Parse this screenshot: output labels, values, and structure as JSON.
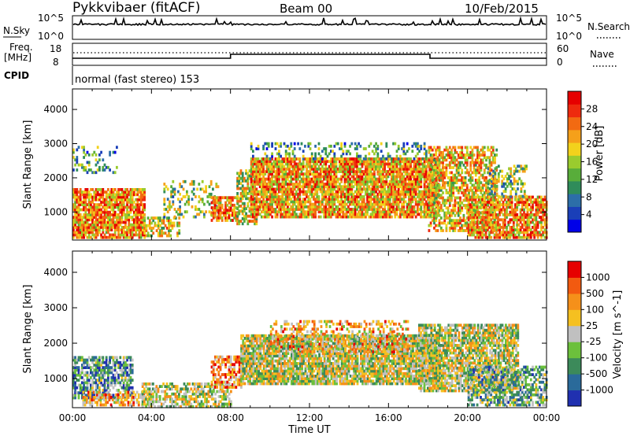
{
  "header": {
    "site": "Pykkvibaer (fitACF)",
    "beam": "Beam 00",
    "date": "10/Feb/2015"
  },
  "status_panels": {
    "nsky": {
      "label": "N.Sky",
      "ticks": [
        "10^5",
        "10^0"
      ],
      "right_label": "N.Search",
      "right_ticks": [
        "10^5",
        "10^0"
      ]
    },
    "freq": {
      "label_top": "Freq.",
      "label_bottom": "[MHz]",
      "ticks": [
        "18",
        "8"
      ],
      "right_label": "Nave",
      "right_ticks": [
        "60",
        "0"
      ]
    },
    "cpid": {
      "label": "CPID",
      "text": "normal (fast stereo) 153"
    }
  },
  "time_axis": {
    "label": "Time UT",
    "ticks": [
      "00:00",
      "04:00",
      "08:00",
      "12:00",
      "16:00",
      "20:00",
      "00:00"
    ]
  },
  "chart_data": [
    {
      "type": "heatmap",
      "name": "power-panel",
      "ylabel": "Slant Range [km]",
      "yticks": [
        1000,
        2000,
        3000,
        4000
      ],
      "ylim": [
        180,
        4600
      ],
      "xlim_hours": [
        0,
        24
      ],
      "colorbar": {
        "label": "Power [dB]",
        "ticks": [
          "28",
          "24",
          "20",
          "16",
          "12",
          "8",
          "4"
        ],
        "colors": [
          "#0000e8",
          "#1a3fb8",
          "#2c6ea8",
          "#2f8c5a",
          "#58ad3a",
          "#9acb2e",
          "#f2d21c",
          "#f5a01a",
          "#f26a12",
          "#ee2a0e",
          "#e60000"
        ]
      },
      "scatter_bands": [
        {
          "t0": 0.0,
          "t1": 3.6,
          "r0": 300,
          "r1": 1700,
          "level": 0.72,
          "density": 0.82
        },
        {
          "t0": 0.0,
          "t1": 2.2,
          "r0": 2200,
          "r1": 3000,
          "level": 0.35,
          "density": 0.22
        },
        {
          "t0": 3.6,
          "t1": 5.4,
          "r0": 350,
          "r1": 900,
          "level": 0.55,
          "density": 0.55
        },
        {
          "t0": 4.6,
          "t1": 7.4,
          "r0": 900,
          "r1": 2000,
          "level": 0.45,
          "density": 0.28
        },
        {
          "t0": 7.0,
          "t1": 8.4,
          "r0": 800,
          "r1": 1500,
          "level": 0.72,
          "density": 0.65
        },
        {
          "t0": 8.3,
          "t1": 9.3,
          "r0": 700,
          "r1": 2300,
          "level": 0.55,
          "density": 0.6
        },
        {
          "t0": 9.0,
          "t1": 18.5,
          "r0": 900,
          "r1": 2600,
          "level": 0.68,
          "density": 0.85
        },
        {
          "t0": 9.0,
          "t1": 18.0,
          "r0": 2600,
          "r1": 3100,
          "level": 0.35,
          "density": 0.25
        },
        {
          "t0": 18.0,
          "t1": 21.5,
          "r0": 500,
          "r1": 3000,
          "level": 0.62,
          "density": 0.6
        },
        {
          "t0": 20.0,
          "t1": 24.0,
          "r0": 300,
          "r1": 1500,
          "level": 0.7,
          "density": 0.75
        },
        {
          "t0": 21.0,
          "t1": 23.0,
          "r0": 1500,
          "r1": 2400,
          "level": 0.45,
          "density": 0.4
        }
      ]
    },
    {
      "type": "heatmap",
      "name": "velocity-panel",
      "ylabel": "Slant Range [km]",
      "yticks": [
        1000,
        2000,
        3000,
        4000
      ],
      "ylim": [
        180,
        4600
      ],
      "xlim_hours": [
        0,
        24
      ],
      "colorbar": {
        "label": "Velocity [m s^-1]",
        "ticks": [
          "1000",
          "500",
          "100",
          "25",
          "-25",
          "-100",
          "-500",
          "-1000"
        ],
        "colors": [
          "#2030b0",
          "#2a6a9a",
          "#3c8a5a",
          "#6cc03c",
          "#c0c0c0",
          "#f5c020",
          "#f5901a",
          "#f25a10",
          "#e60000"
        ]
      },
      "scatter_bands": [
        {
          "t0": 0.0,
          "t1": 3.0,
          "r0": 500,
          "r1": 1700,
          "level": 0.3,
          "density": 0.7
        },
        {
          "t0": 0.5,
          "t1": 4.0,
          "r0": 300,
          "r1": 700,
          "level": 0.68,
          "density": 0.55
        },
        {
          "t0": 3.5,
          "t1": 8.0,
          "r0": 250,
          "r1": 900,
          "level": 0.5,
          "density": 0.6
        },
        {
          "t0": 7.0,
          "t1": 8.5,
          "r0": 800,
          "r1": 1700,
          "level": 0.72,
          "density": 0.6
        },
        {
          "t0": 8.5,
          "t1": 18.5,
          "r0": 900,
          "r1": 2300,
          "level": 0.5,
          "density": 0.85
        },
        {
          "t0": 10.0,
          "t1": 17.0,
          "r0": 1800,
          "r1": 2700,
          "level": 0.65,
          "density": 0.35
        },
        {
          "t0": 17.5,
          "t1": 22.5,
          "r0": 700,
          "r1": 2600,
          "level": 0.5,
          "density": 0.75
        },
        {
          "t0": 20.0,
          "t1": 24.0,
          "r0": 300,
          "r1": 1400,
          "level": 0.35,
          "density": 0.6
        }
      ]
    }
  ]
}
